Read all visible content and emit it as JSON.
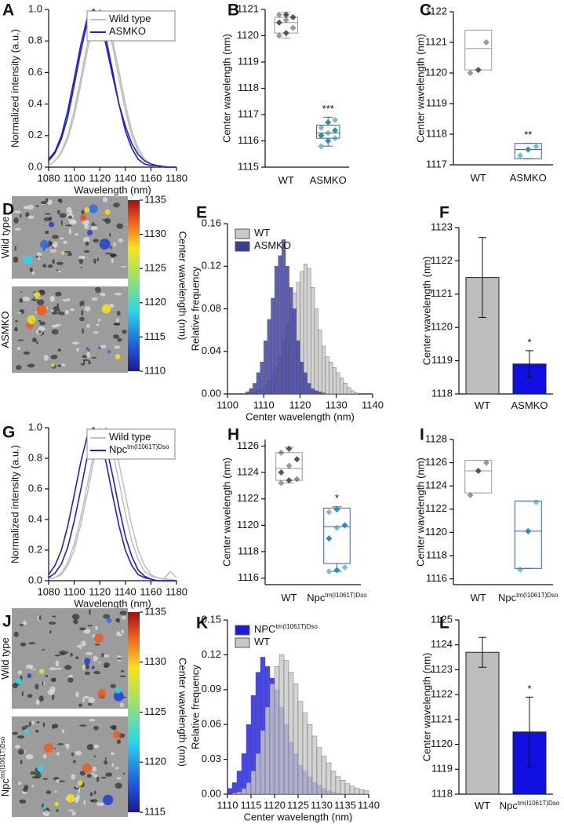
{
  "chart_data": [
    {
      "type": "line",
      "panel": "A",
      "x_label": "Wavelength (nm)",
      "y_label": "Normalized intensity (a.u.)",
      "x": [
        1080,
        1085,
        1090,
        1095,
        1100,
        1105,
        1110,
        1115,
        1120,
        1125,
        1130,
        1135,
        1140,
        1145,
        1150,
        1155,
        1160,
        1165,
        1170,
        1175,
        1180
      ],
      "xlim": [
        1080,
        1180
      ],
      "xticks": [
        1080,
        1100,
        1120,
        1140,
        1160,
        1180
      ],
      "ylim": [
        0,
        1
      ],
      "yticks": [
        {
          "value": 0,
          "label": "0.0"
        },
        0.2,
        0.4,
        0.6,
        0.8,
        {
          "value": 1,
          "label": "1.0"
        }
      ],
      "legend": "upper right",
      "series": [
        {
          "name": "Wild type",
          "color": "#c0c0c0",
          "values": [
            [
              0.01,
              0.04,
              0.1,
              0.2,
              0.36,
              0.56,
              0.77,
              0.94,
              1.0,
              0.94,
              0.77,
              0.56,
              0.36,
              0.2,
              0.1,
              0.04,
              0.02,
              0.01,
              0.01,
              0,
              0
            ],
            [
              0.01,
              0.04,
              0.09,
              0.18,
              0.32,
              0.52,
              0.73,
              0.91,
              1.0,
              0.96,
              0.81,
              0.61,
              0.4,
              0.23,
              0.12,
              0.05,
              0.02,
              0.01,
              0.01,
              0,
              0
            ]
          ]
        },
        {
          "name": "ASMKO",
          "color": "#2020d0",
          "values": [
            [
              0.04,
              0.09,
              0.18,
              0.32,
              0.52,
              0.73,
              0.91,
              1.0,
              0.96,
              0.81,
              0.61,
              0.4,
              0.23,
              0.12,
              0.05,
              0.02,
              0.01,
              0.01,
              0,
              0,
              0
            ],
            [
              0.05,
              0.1,
              0.2,
              0.36,
              0.56,
              0.77,
              0.94,
              1.0,
              0.94,
              0.77,
              0.58,
              0.4,
              0.26,
              0.15,
              0.08,
              0.04,
              0.02,
              0.01,
              0,
              0,
              0
            ]
          ]
        }
      ]
    },
    {
      "type": "box",
      "panel": "B",
      "y_label": "Center wavelength (nm)",
      "ylim": [
        1115,
        1121
      ],
      "yticks": [
        1115,
        1116,
        1117,
        1118,
        1119,
        1120,
        1121
      ],
      "annotation": "***",
      "groups": [
        {
          "name": "WT",
          "color": "#555555",
          "points": [
            1120.0,
            1120.1,
            1120.3,
            1120.5,
            1120.6,
            1120.7,
            1120.8,
            1120.8
          ],
          "box": [
            1119.9,
            1120.1,
            1120.5,
            1120.7,
            1120.9
          ]
        },
        {
          "name": "ASMKO",
          "color": "#2a8fb0",
          "points": [
            1115.8,
            1116.0,
            1116.1,
            1116.2,
            1116.3,
            1116.4,
            1116.5,
            1116.7,
            1116.8
          ],
          "box": [
            1115.8,
            1116.1,
            1116.3,
            1116.6,
            1116.9
          ]
        }
      ]
    },
    {
      "type": "box",
      "panel": "C",
      "y_label": "Center wavelength (nm)",
      "ylim": [
        1117,
        1122
      ],
      "yticks": [
        1117,
        1118,
        1119,
        1120,
        1121,
        1122
      ],
      "annotation": "**",
      "groups": [
        {
          "name": "WT",
          "color": "#555555",
          "points": [
            1120.0,
            1120.1,
            1121.0
          ],
          "box": [
            1120.1,
            1120.1,
            1120.8,
            1121.4,
            1121.4
          ]
        },
        {
          "name": "ASMKO",
          "color": "#2a8fb0",
          "points": [
            1117.3,
            1117.5,
            1117.6
          ],
          "box": [
            1117.2,
            1117.2,
            1117.5,
            1117.7,
            1117.7
          ]
        }
      ]
    },
    {
      "type": "image",
      "panel": "D",
      "colorbar_label": "Center wavelength (nm)",
      "ylim": [
        1110,
        1135
      ],
      "yticks": [
        1110,
        1115,
        1120,
        1125,
        1130,
        1135
      ],
      "image_labels": [
        {
          "name": "Wild type"
        },
        {
          "name": "ASMKO"
        }
      ]
    },
    {
      "type": "histogram",
      "panel": "E",
      "x_label": "Center wavelength (nm)",
      "y_label": "Relative frequency",
      "xlim": [
        1100,
        1140
      ],
      "xticks": [
        1100,
        1110,
        1120,
        1130,
        1140
      ],
      "ylim": [
        0,
        0.16
      ],
      "yticks": [
        {
          "value": 0,
          "label": "0.00"
        },
        0.04,
        0.08,
        0.12,
        0.16
      ],
      "legend": "upper left",
      "bins": [
        1104,
        1105,
        1106,
        1107,
        1108,
        1109,
        1110,
        1111,
        1112,
        1113,
        1114,
        1115,
        1116,
        1117,
        1118,
        1119,
        1120,
        1121,
        1122,
        1123,
        1124,
        1125,
        1126,
        1127,
        1128,
        1129,
        1130,
        1131,
        1132,
        1133,
        1134,
        1135,
        1136
      ],
      "series": [
        {
          "name": "WT",
          "color": "#c8c8c8",
          "values": [
            0,
            0,
            0.001,
            0.002,
            0.003,
            0.005,
            0.008,
            0.012,
            0.018,
            0.025,
            0.035,
            0.05,
            0.065,
            0.08,
            0.095,
            0.105,
            0.115,
            0.122,
            0.118,
            0.1,
            0.08,
            0.06,
            0.045,
            0.035,
            0.03,
            0.025,
            0.02,
            0.015,
            0.01,
            0.006,
            0.003,
            0.001
          ]
        },
        {
          "name": "ASMKO",
          "color": "#3a3aa0",
          "values": [
            0,
            0.002,
            0.005,
            0.01,
            0.02,
            0.03,
            0.05,
            0.07,
            0.09,
            0.12,
            0.13,
            0.145,
            0.12,
            0.1,
            0.08,
            0.05,
            0.03,
            0.02,
            0.01,
            0.005,
            0.003,
            0.002,
            0.001,
            0,
            0,
            0,
            0,
            0,
            0,
            0,
            0,
            0
          ]
        }
      ]
    },
    {
      "type": "bar",
      "panel": "F",
      "y_label": "Center wavelength (nm)",
      "ylim": [
        1118,
        1123
      ],
      "yticks": [
        1118,
        1119,
        1120,
        1121,
        1122,
        1123
      ],
      "annotation": "*",
      "groups": [
        {
          "name": "WT",
          "color": "#bdbdbd",
          "value": 1121.5,
          "error": 1.2
        },
        {
          "name": "ASMKO",
          "color": "#1010e0",
          "value": 1118.9,
          "error": 0.4
        }
      ]
    },
    {
      "type": "line",
      "panel": "G",
      "x_label": "Wavelength (nm)",
      "y_label": "Normalized intensity (a.u.)",
      "x": [
        1080,
        1085,
        1090,
        1095,
        1100,
        1105,
        1110,
        1115,
        1120,
        1125,
        1130,
        1135,
        1140,
        1145,
        1150,
        1155,
        1160,
        1165,
        1170,
        1175,
        1180
      ],
      "xlim": [
        1080,
        1180
      ],
      "xticks": [
        1080,
        1100,
        1120,
        1140,
        1160,
        1180
      ],
      "ylim": [
        0,
        1
      ],
      "yticks": [
        {
          "value": 0,
          "label": "0.0"
        },
        0.2,
        0.4,
        0.6,
        0.8,
        {
          "value": 1,
          "label": "1.0"
        }
      ],
      "legend": "upper right",
      "series": [
        {
          "name": "Wild type",
          "color": "#c0c0c0",
          "values": [
            [
              0.01,
              0.02,
              0.04,
              0.1,
              0.2,
              0.36,
              0.56,
              0.77,
              0.94,
              1.0,
              0.94,
              0.77,
              0.56,
              0.36,
              0.2,
              0.1,
              0.04,
              0.02,
              0.01,
              0.06,
              0.02
            ],
            [
              0.01,
              0.02,
              0.05,
              0.12,
              0.24,
              0.41,
              0.62,
              0.82,
              0.97,
              0.98,
              0.85,
              0.65,
              0.44,
              0.26,
              0.14,
              0.06,
              0.03,
              0.02,
              0.01,
              0.01,
              0
            ]
          ]
        },
        {
          "name": "Npc",
          "name_sup": "tm(I1061T)Dso",
          "color": "#2020d0",
          "values": [
            [
              0.04,
              0.1,
              0.2,
              0.36,
              0.56,
              0.77,
              0.94,
              1.0,
              0.94,
              0.77,
              0.56,
              0.36,
              0.2,
              0.1,
              0.04,
              0.02,
              0.01,
              0,
              0,
              0,
              0
            ],
            [
              0.02,
              0.05,
              0.11,
              0.22,
              0.39,
              0.59,
              0.8,
              0.95,
              0.99,
              0.88,
              0.69,
              0.48,
              0.29,
              0.16,
              0.07,
              0.03,
              0.01,
              0,
              0,
              0,
              0
            ]
          ]
        }
      ]
    },
    {
      "type": "box",
      "panel": "H",
      "y_label": "Center wavelength (nm)",
      "ylim": [
        1115.5,
        1126.5
      ],
      "yticks": [
        1116,
        1118,
        1120,
        1122,
        1124,
        1126
      ],
      "annotation": "*",
      "groups": [
        {
          "name": "WT",
          "color": "#555555",
          "points": [
            1123.2,
            1123.4,
            1123.5,
            1124.0,
            1124.5,
            1125.0,
            1125.5,
            1125.8
          ],
          "box": [
            1123.2,
            1123.4,
            1124.3,
            1125.5,
            1125.9
          ]
        },
        {
          "name": "Npc",
          "name_sup": "tm(I1061T)Dso",
          "color": "#2a8fb0",
          "points": [
            1116.5,
            1116.6,
            1116.8,
            1119.0,
            1119.8,
            1120.0,
            1121.0,
            1121.2
          ],
          "box": [
            1116.5,
            1117.1,
            1119.9,
            1121.3,
            1121.4
          ]
        }
      ]
    },
    {
      "type": "box",
      "panel": "I",
      "y_label": "Center wavelength (nm)",
      "ylim": [
        1115.5,
        1128
      ],
      "yticks": [
        1116,
        1118,
        1120,
        1122,
        1124,
        1126,
        1128
      ],
      "groups": [
        {
          "name": "WT",
          "color": "#555555",
          "points": [
            1123.2,
            1125.3,
            1126.0
          ],
          "box": [
            1123.4,
            1123.4,
            1125.3,
            1126.2,
            1126.2
          ]
        },
        {
          "name": "Npc",
          "name_sup": "tm(I1061T)Dso",
          "color": "#2a8fb0",
          "points": [
            1116.8,
            1120.1,
            1122.6
          ],
          "box": [
            1116.9,
            1116.9,
            1120.1,
            1122.7,
            1122.7
          ]
        }
      ]
    },
    {
      "type": "image",
      "panel": "J",
      "colorbar_label": "Center wavelength (nm)",
      "ylim": [
        1115,
        1135
      ],
      "yticks": [
        1115,
        1120,
        1125,
        1130,
        1135
      ],
      "image_labels": [
        {
          "name": "Wild type"
        },
        {
          "name": "Npc",
          "name_sup": "tm(I1061T)Dso"
        }
      ]
    },
    {
      "type": "histogram",
      "panel": "K",
      "x_label": "Center wavelength (nm)",
      "y_label": "Relative frequency",
      "xlim": [
        1110,
        1140
      ],
      "xticks": [
        1110,
        1115,
        1120,
        1125,
        1130,
        1135,
        1140
      ],
      "ylim": [
        0,
        0.15
      ],
      "yticks": [
        {
          "value": 0,
          "label": "0.00"
        },
        {
          "value": 0.03,
          "label": "0.03"
        },
        {
          "value": 0.06,
          "label": "0.06"
        },
        {
          "value": 0.09,
          "label": "0.09"
        },
        0.12,
        0.15
      ],
      "legend": "upper left",
      "bins": [
        1110,
        1111,
        1112,
        1113,
        1114,
        1115,
        1116,
        1117,
        1118,
        1119,
        1120,
        1121,
        1122,
        1123,
        1124,
        1125,
        1126,
        1127,
        1128,
        1129,
        1130,
        1131,
        1132,
        1133,
        1134,
        1135,
        1136,
        1137,
        1138,
        1139,
        1140
      ],
      "series": [
        {
          "name": "NPC",
          "name_sup": "tm(I1061T)Dso",
          "color": "#1a1ae0",
          "values": [
            0.005,
            0.01,
            0.02,
            0.035,
            0.06,
            0.085,
            0.105,
            0.118,
            0.11,
            0.1,
            0.09,
            0.075,
            0.06,
            0.045,
            0.035,
            0.025,
            0.02,
            0.015,
            0.01,
            0.008,
            0.005,
            0.003,
            0.002,
            0.001,
            0,
            0,
            0,
            0,
            0,
            0
          ]
        },
        {
          "name": "WT",
          "color": "#c8c8c8",
          "values": [
            0,
            0.001,
            0.002,
            0.005,
            0.01,
            0.02,
            0.035,
            0.055,
            0.075,
            0.095,
            0.11,
            0.12,
            0.115,
            0.105,
            0.095,
            0.08,
            0.07,
            0.06,
            0.05,
            0.04,
            0.033,
            0.027,
            0.02,
            0.015,
            0.012,
            0.009,
            0.007,
            0.005,
            0.004,
            0.003
          ]
        }
      ]
    },
    {
      "type": "bar",
      "panel": "L",
      "y_label": "Center wavelength (nm)",
      "ylim": [
        1118,
        1125
      ],
      "yticks": [
        1118,
        1119,
        1120,
        1121,
        1122,
        1123,
        1124,
        1125
      ],
      "annotation": "*",
      "groups": [
        {
          "name": "WT",
          "color": "#bdbdbd",
          "value": 1123.7,
          "error": 0.6
        },
        {
          "name": "Npc",
          "name_sup": "tm(I1061T)Dso",
          "color": "#1010e0",
          "value": 1120.5,
          "error": 1.4
        }
      ]
    }
  ]
}
